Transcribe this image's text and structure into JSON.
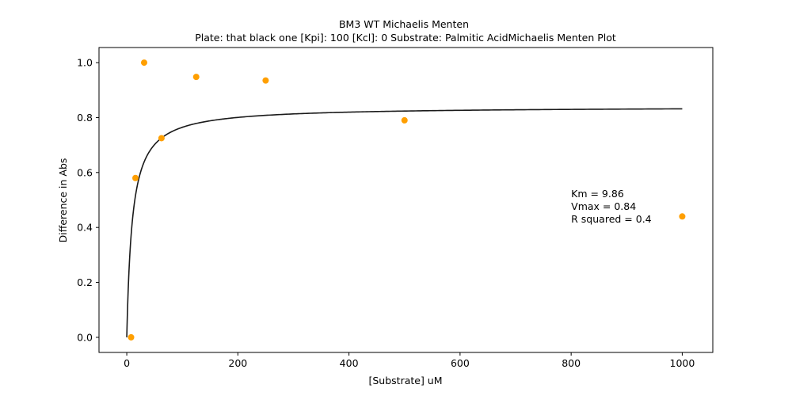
{
  "chart_data": {
    "type": "scatter",
    "title": "BM3 WT Michaelis Menten",
    "subtitle": "Plate: that black one  [Kpi]: 100  [Kcl]: 0  Substrate: Palmitic AcidMichaelis Menten Plot",
    "xlabel": "[Substrate] uM",
    "ylabel": "Difference in Abs",
    "xlim": [
      -50,
      1055
    ],
    "ylim": [
      -0.055,
      1.055
    ],
    "x_ticks": [
      0,
      200,
      400,
      600,
      800,
      1000
    ],
    "y_ticks": [
      0.0,
      0.2,
      0.4,
      0.6,
      0.8,
      1.0
    ],
    "x_tick_labels": [
      "0",
      "200",
      "400",
      "600",
      "800",
      "1000"
    ],
    "y_tick_labels": [
      "0.0",
      "0.2",
      "0.4",
      "0.6",
      "0.8",
      "1.0"
    ],
    "grid": false,
    "points": {
      "color": "#ff9f00",
      "x": [
        7.8,
        15.6,
        31.25,
        62.5,
        125,
        250,
        500,
        1000
      ],
      "y": [
        0.0,
        0.58,
        1.0,
        0.725,
        0.948,
        0.935,
        0.79,
        0.44
      ]
    },
    "fit": {
      "type": "michaelis-menten",
      "color": "#1a1a1a",
      "Km": 9.86,
      "Vmax": 0.84,
      "x_range": [
        0,
        1000
      ]
    },
    "annotation": {
      "lines": [
        "Km = 9.86",
        "Vmax = 0.84",
        "R squared = 0.4"
      ],
      "anchor": [
        800,
        0.51
      ]
    }
  }
}
